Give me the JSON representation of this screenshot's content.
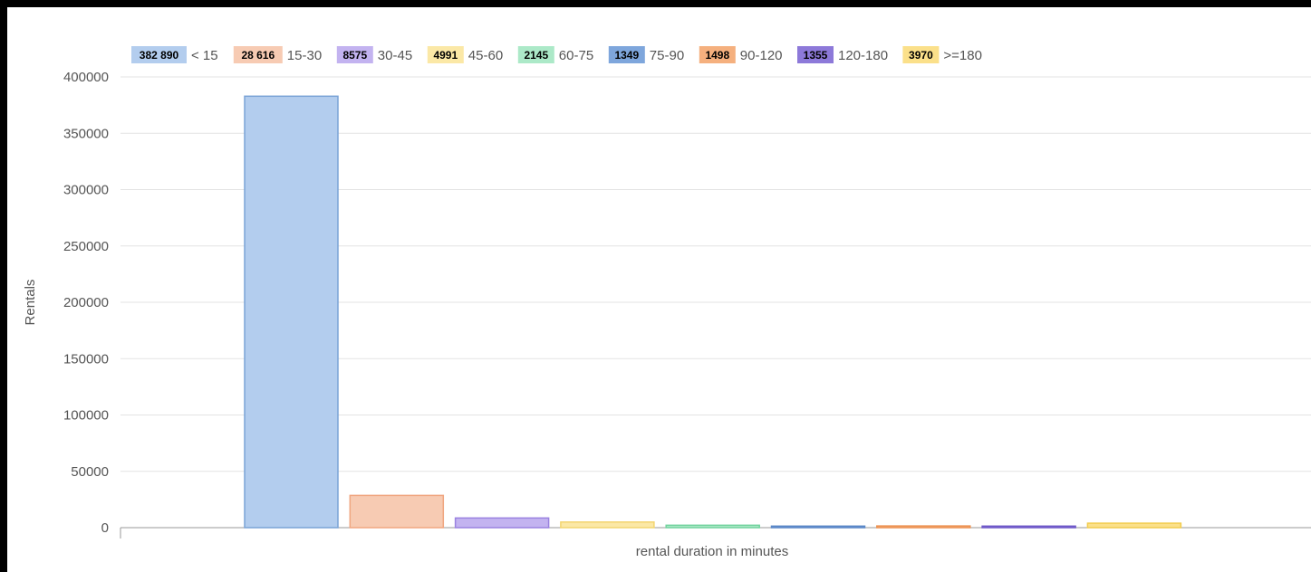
{
  "chart_data": {
    "type": "bar",
    "title": "",
    "xlabel": "rental duration in minutes",
    "ylabel": "Rentals",
    "ylim": [
      0,
      400000
    ],
    "yticks": [
      "0",
      "50000",
      "100000",
      "150000",
      "200000",
      "250000",
      "300000",
      "350000",
      "400000"
    ],
    "ytick_values": [
      0,
      50000,
      100000,
      150000,
      200000,
      250000,
      300000,
      350000,
      400000
    ],
    "grid": true,
    "legend_position": "top",
    "series": [
      {
        "name": "< 15",
        "value_label": "382 890",
        "value": 382890,
        "fill": "#b3cdee",
        "stroke": "#7aa3d6"
      },
      {
        "name": "15-30",
        "value_label": "28 616",
        "value": 28616,
        "fill": "#f7cbb3",
        "stroke": "#f0a680"
      },
      {
        "name": "30-45",
        "value_label": "8575",
        "value": 8575,
        "fill": "#c3b3f0",
        "stroke": "#9a82e0"
      },
      {
        "name": "45-60",
        "value_label": "4991",
        "value": 4991,
        "fill": "#fbe8a6",
        "stroke": "#f3d570"
      },
      {
        "name": "60-75",
        "value_label": "2145",
        "value": 2145,
        "fill": "#ace9c8",
        "stroke": "#72d39e"
      },
      {
        "name": "75-90",
        "value_label": "1349",
        "value": 1349,
        "fill": "#7ea6dc",
        "stroke": "#5a87c7"
      },
      {
        "name": "90-120",
        "value_label": "1498",
        "value": 1498,
        "fill": "#f5b07e",
        "stroke": "#ec9150"
      },
      {
        "name": "120-180",
        "value_label": "1355",
        "value": 1355,
        "fill": "#8d79d9",
        "stroke": "#6e58c8"
      },
      {
        "name": ">=180",
        "value_label": "3970",
        "value": 3970,
        "fill": "#fbe08a",
        "stroke": "#f2cc4e"
      }
    ]
  }
}
